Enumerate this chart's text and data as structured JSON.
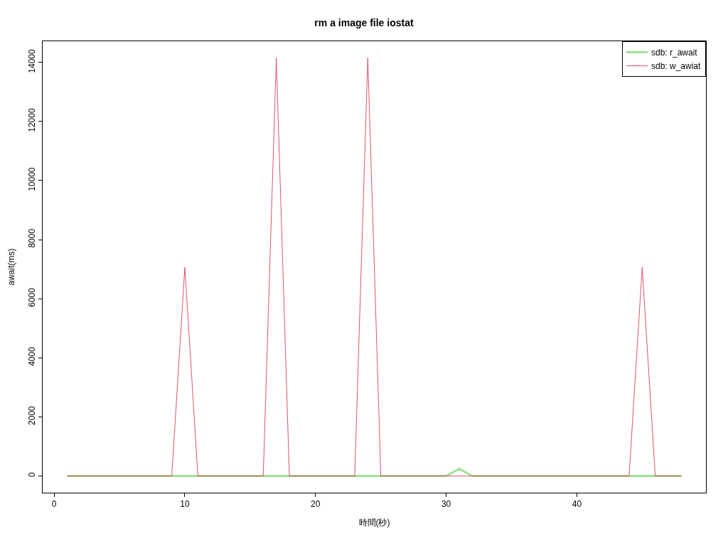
{
  "chart_data": {
    "type": "line",
    "title": "rm a image file iostat",
    "xlabel": "時間(秒)",
    "ylabel": "await(ms)",
    "x": [
      1,
      2,
      3,
      4,
      5,
      6,
      7,
      8,
      9,
      10,
      11,
      12,
      13,
      14,
      15,
      16,
      17,
      18,
      19,
      20,
      21,
      22,
      23,
      24,
      25,
      26,
      27,
      28,
      29,
      30,
      31,
      32,
      33,
      34,
      35,
      36,
      37,
      38,
      39,
      40,
      41,
      42,
      43,
      44,
      45,
      46,
      47,
      48
    ],
    "series": [
      {
        "name": "sdb: r_await",
        "color": "#61d04f",
        "values": [
          0,
          0,
          0,
          0,
          0,
          0,
          0,
          0,
          0,
          0,
          0,
          0,
          0,
          0,
          0,
          0,
          0,
          0,
          0,
          0,
          0,
          0,
          0,
          0,
          0,
          0,
          0,
          0,
          0,
          0,
          240,
          0,
          0,
          0,
          0,
          0,
          0,
          0,
          0,
          0,
          0,
          0,
          0,
          0,
          0,
          0,
          0,
          0
        ]
      },
      {
        "name": "sdb: w_awiat",
        "color": "#df536b",
        "values": [
          0,
          0,
          0,
          0,
          0,
          0,
          0,
          0,
          0,
          7060,
          0,
          0,
          0,
          0,
          0,
          0,
          14150,
          0,
          0,
          0,
          0,
          0,
          0,
          14150,
          0,
          0,
          0,
          0,
          0,
          0,
          0,
          0,
          0,
          0,
          0,
          0,
          0,
          0,
          0,
          0,
          0,
          0,
          0,
          0,
          7060,
          0,
          0,
          0
        ]
      }
    ],
    "xlim": [
      -0.88,
      49.88
    ],
    "xticks": [
      0,
      10,
      20,
      30,
      40
    ],
    "ylim": [
      -566,
      14716
    ],
    "yticks": [
      0,
      2000,
      4000,
      6000,
      8000,
      10000,
      12000,
      14000
    ],
    "legend": "top right",
    "marker": "none",
    "line_style": "solid"
  }
}
